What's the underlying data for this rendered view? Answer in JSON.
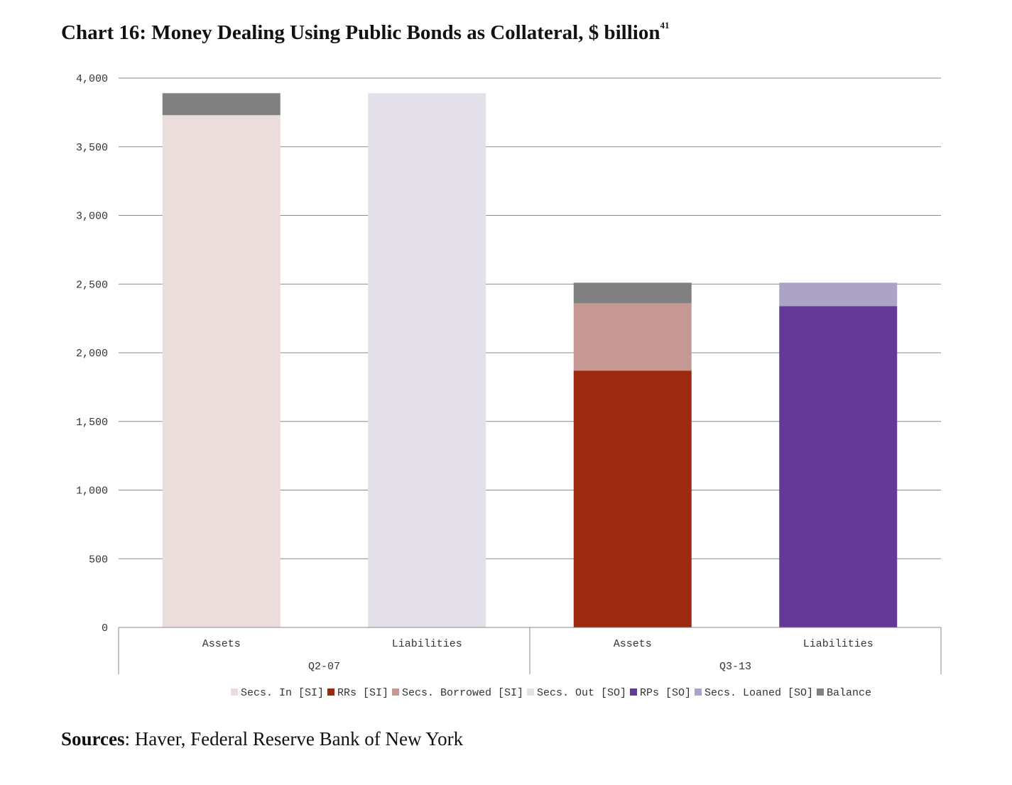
{
  "title": "Chart 16: Money Dealing Using Public Bonds as Collateral, $ billion",
  "title_footnote": "41",
  "sources": {
    "label": "Sources",
    "text": ": Haver, Federal Reserve Bank of New York"
  },
  "chart_data": {
    "type": "bar",
    "stacked": true,
    "y_ticks": [
      "4,000",
      "3,500",
      "3,000",
      "2,500",
      "2,000",
      "1,500",
      "1,000",
      "500",
      "0"
    ],
    "ylim": [
      0,
      4000
    ],
    "grid": true,
    "legend_position": "bottom",
    "groups": [
      {
        "label": "Q2-07",
        "categories": [
          "Assets",
          "Liabilities"
        ]
      },
      {
        "label": "Q3-13",
        "categories": [
          "Assets",
          "Liabilities"
        ]
      }
    ],
    "categories": [
      "Assets",
      "Liabilities",
      "Assets",
      "Liabilities"
    ],
    "series": [
      {
        "name": "Secs. In [SI]",
        "color": "#eadddb",
        "values": [
          3730,
          0,
          0,
          0
        ]
      },
      {
        "name": "RRs [SI]",
        "color": "#9c2a10",
        "values": [
          0,
          0,
          1870,
          0
        ]
      },
      {
        "name": "Secs. Borrowed [SI]",
        "color": "#c59893",
        "values": [
          0,
          0,
          490,
          0
        ]
      },
      {
        "name": "Secs. Out [SO]",
        "color": "#e3e0ea",
        "values": [
          0,
          3890,
          0,
          0
        ]
      },
      {
        "name": "RPs [SO]",
        "color": "#633a98",
        "values": [
          0,
          0,
          0,
          2340
        ]
      },
      {
        "name": "Secs. Loaned [SO]",
        "color": "#ada3c6",
        "values": [
          0,
          0,
          0,
          170
        ]
      },
      {
        "name": "Balance",
        "color": "#808080",
        "values": [
          160,
          0,
          150,
          0
        ]
      }
    ]
  }
}
